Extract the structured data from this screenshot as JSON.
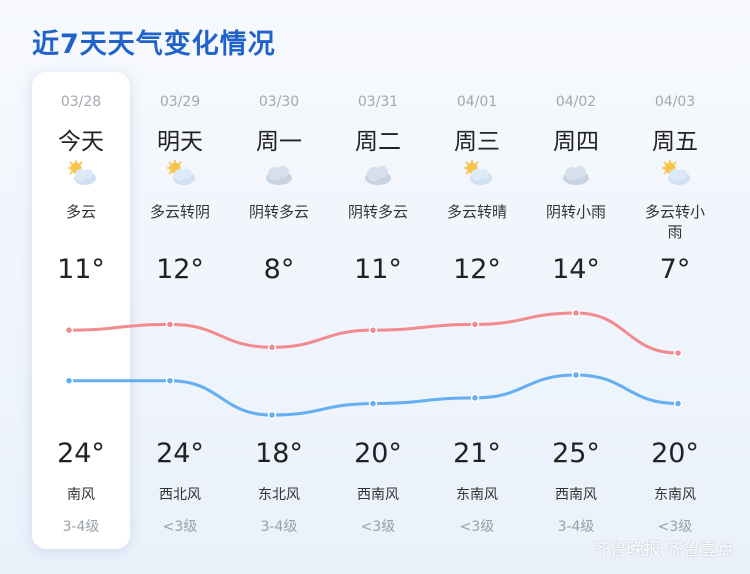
{
  "title": "近7天天气变化情况",
  "days": [
    {
      "date": "03/28",
      "day": "今天",
      "weather": "多云",
      "icon": "sun-cloud-icon",
      "high": "11°",
      "low": "24°",
      "wind_dir": "南风",
      "wind_level": "3-4级"
    },
    {
      "date": "03/29",
      "day": "明天",
      "weather": "多云转阴",
      "icon": "sun-cloud-icon",
      "high": "12°",
      "low": "24°",
      "wind_dir": "西北风",
      "wind_level": "<3级"
    },
    {
      "date": "03/30",
      "day": "周一",
      "weather": "阴转多云",
      "icon": "cloud-icon",
      "high": "8°",
      "low": "18°",
      "wind_dir": "东北风",
      "wind_level": "3-4级"
    },
    {
      "date": "03/31",
      "day": "周二",
      "weather": "阴转多云",
      "icon": "cloud-icon",
      "high": "11°",
      "low": "20°",
      "wind_dir": "西南风",
      "wind_level": "<3级"
    },
    {
      "date": "04/01",
      "day": "周三",
      "weather": "多云转晴",
      "icon": "sun-cloud-icon",
      "high": "12°",
      "low": "21°",
      "wind_dir": "东南风",
      "wind_level": "<3级"
    },
    {
      "date": "04/02",
      "day": "周四",
      "weather": "阴转小雨",
      "icon": "cloud-icon",
      "high": "14°",
      "low": "25°",
      "wind_dir": "西南风",
      "wind_level": "3-4级"
    },
    {
      "date": "04/03",
      "day": "周五",
      "weather": "多云转小雨",
      "icon": "sun-cloud-icon",
      "high": "7°",
      "low": "20°",
      "wind_dir": "东南风",
      "wind_level": "<3级"
    }
  ],
  "chart_data": {
    "type": "line",
    "categories": [
      "03/28",
      "03/29",
      "03/30",
      "03/31",
      "04/01",
      "04/02",
      "04/03"
    ],
    "series": [
      {
        "values": [
          11,
          12,
          8,
          11,
          12,
          14,
          7
        ]
      },
      {
        "values": [
          24,
          24,
          18,
          20,
          21,
          25,
          20
        ]
      }
    ]
  },
  "colors": {
    "high_line": "#f28b8f",
    "low_line": "#64aef2",
    "title": "#1f62c9"
  },
  "watermark": "齐鲁晚报 齐鲁壹点"
}
